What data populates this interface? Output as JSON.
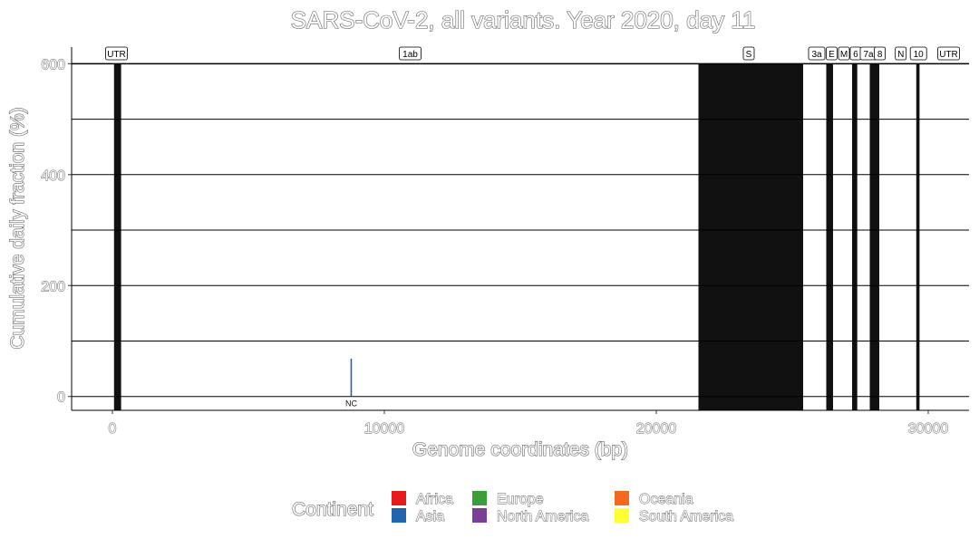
{
  "chart_data": {
    "type": "bar",
    "title": "SARS-CoV-2, all variants. Year 2020, day 11",
    "xlabel": "Genome coordinates (bp)",
    "ylabel": "Cumulative daily fraction (%)",
    "xlim": [
      -1500,
      31500
    ],
    "ylim": [
      -25,
      630
    ],
    "x_ticks": [
      0,
      10000,
      20000,
      30000
    ],
    "x_tick_labels": [
      "0",
      "10000",
      "20000",
      "30000"
    ],
    "y_ticks": [
      0,
      200,
      400,
      600
    ],
    "y_tick_labels": [
      "0",
      "200",
      "400",
      "600"
    ],
    "y_gridlines": [
      0,
      100,
      200,
      300,
      400,
      500,
      600
    ],
    "grid": true,
    "genes": [
      {
        "label": "UTR",
        "center": 150,
        "band": [
          60,
          320
        ]
      },
      {
        "label": "1ab",
        "center": 10950,
        "band": null
      },
      {
        "label": "S",
        "center": 23400,
        "band": [
          21550,
          25400
        ]
      },
      {
        "label": "3a",
        "center": 25900,
        "band": null
      },
      {
        "label": "E",
        "center": 26450,
        "band": [
          26250,
          26500
        ]
      },
      {
        "label": "M",
        "center": 26900,
        "band": null
      },
      {
        "label": "6",
        "center": 27330,
        "band": [
          27200,
          27390
        ]
      },
      {
        "label": "7a",
        "center": 27800,
        "band": null
      },
      {
        "label": "8",
        "center": 28220,
        "band": [
          27850,
          28200
        ]
      },
      {
        "label": "N",
        "center": 28990,
        "band": null
      },
      {
        "label": "10",
        "center": 29640,
        "band": [
          29560,
          29680
        ]
      },
      {
        "label": "UTR",
        "center": 30750,
        "band": null
      }
    ],
    "series": [
      {
        "name": "Asia",
        "color": "#2166AC",
        "x": [
          8782
        ],
        "values": [
          68
        ]
      }
    ],
    "mutation_labels": [
      {
        "x": 8782,
        "text": "NC"
      }
    ],
    "legend": {
      "title": "Continent",
      "placement": "bottom",
      "items": [
        {
          "name": "Africa",
          "color": "#E41A1C"
        },
        {
          "name": "Asia",
          "color": "#2166AC"
        },
        {
          "name": "Europe",
          "color": "#3A9E3A"
        },
        {
          "name": "North America",
          "color": "#7A3E98"
        },
        {
          "name": "Oceania",
          "color": "#F26B1D"
        },
        {
          "name": "South America",
          "color": "#FFFF33"
        }
      ]
    }
  }
}
